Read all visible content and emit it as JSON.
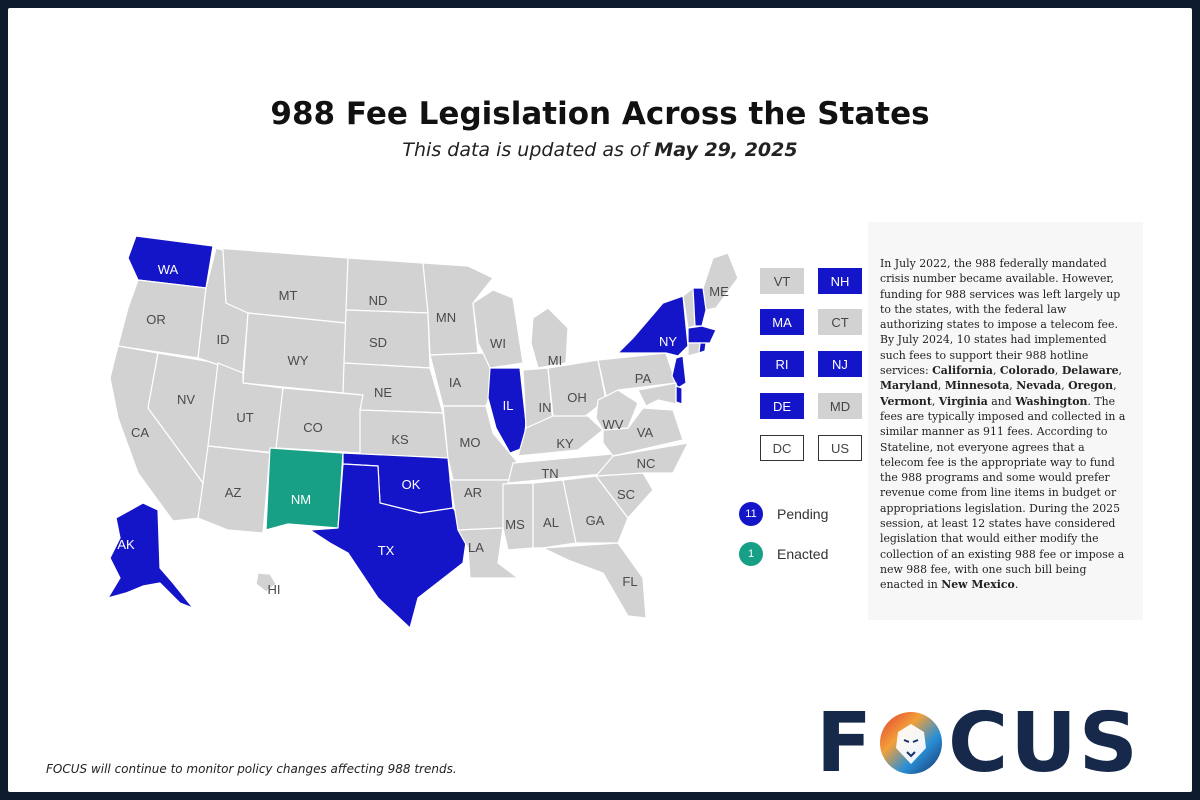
{
  "title": "988 Fee Legislation Across the States",
  "subtitle": {
    "prefix": "This data is updated as of ",
    "date": "May 29, 2025"
  },
  "colors": {
    "pending": "#1414c8",
    "enacted": "#17a085",
    "none": "#d2d2d2"
  },
  "states": {
    "WA": "pending",
    "OR": "none",
    "CA": "none",
    "NV": "none",
    "ID": "none",
    "MT": "none",
    "WY": "none",
    "UT": "none",
    "AZ": "none",
    "CO": "none",
    "NM": "enacted",
    "ND": "none",
    "SD": "none",
    "NE": "none",
    "KS": "none",
    "OK": "pending",
    "TX": "pending",
    "MN": "none",
    "IA": "none",
    "MO": "none",
    "AR": "none",
    "LA": "none",
    "WI": "none",
    "IL": "pending",
    "MI": "none",
    "IN": "none",
    "OH": "none",
    "KY": "none",
    "TN": "none",
    "MS": "none",
    "AL": "none",
    "GA": "none",
    "FL": "none",
    "SC": "none",
    "NC": "none",
    "VA": "none",
    "WV": "none",
    "PA": "none",
    "NY": "pending",
    "ME": "none",
    "AK": "pending",
    "HI": "none"
  },
  "map_labels": [
    "WA",
    "OR",
    "CA",
    "NV",
    "ID",
    "MT",
    "WY",
    "UT",
    "AZ",
    "CO",
    "NM",
    "ND",
    "SD",
    "NE",
    "KS",
    "OK",
    "TX",
    "MN",
    "IA",
    "MO",
    "AR",
    "LA",
    "WI",
    "IL",
    "MI",
    "IN",
    "OH",
    "KY",
    "TN",
    "MS",
    "AL",
    "GA",
    "FL",
    "SC",
    "NC",
    "VA",
    "WV",
    "PA",
    "NY",
    "ME",
    "AK",
    "HI"
  ],
  "small_states": [
    {
      "code": "VT",
      "status": "none"
    },
    {
      "code": "NH",
      "status": "pending"
    },
    {
      "code": "MA",
      "status": "pending"
    },
    {
      "code": "CT",
      "status": "none"
    },
    {
      "code": "RI",
      "status": "pending"
    },
    {
      "code": "NJ",
      "status": "pending"
    },
    {
      "code": "DE",
      "status": "pending"
    },
    {
      "code": "MD",
      "status": "none"
    },
    {
      "code": "DC",
      "status": "outline"
    },
    {
      "code": "US",
      "status": "outline"
    }
  ],
  "legend": {
    "pending": {
      "count": "11",
      "label": "Pending"
    },
    "enacted": {
      "count": "1",
      "label": "Enacted"
    }
  },
  "description": {
    "p1": "In July 2022, the 988 federally mandated crisis number became available. However, funding for 988 services was left largely up to the states, with the federal law authorizing states to impose a telecom fee. By July 2024, 10 states had implemented such fees to support their 988 hotline services: ",
    "s1": "California",
    "c1": ", ",
    "s2": "Colorado",
    "c2": ", ",
    "s3": "Delaware",
    "c3": ", ",
    "s4": "Maryland",
    "c4": ", ",
    "s5": "Minnesota",
    "c5": ", ",
    "s6": "Nevada",
    "c6": ", ",
    "s7": "Oregon",
    "c7": ", ",
    "s8": "Vermont",
    "c8": ", ",
    "s9": "Virginia",
    "c9": " and ",
    "s10": "Washington",
    "p2": ". The fees are typically imposed and collected in a similar manner as 911 fees. According to Stateline, not everyone agrees that a telecom fee is the appropriate way to fund the 988 programs and some would prefer revenue come from line items in budget or appropriations legislation. During the 2025 session, at least 12 states have considered legislation that would either modify the collection of an existing 988 fee or impose a new 988 fee, with one such bill being enacted in ",
    "s11": "New Mexico",
    "p3": "."
  },
  "footer": "FOCUS will continue to monitor policy changes affecting 988 trends.",
  "logo": {
    "left": "F",
    "right": "CUS"
  }
}
